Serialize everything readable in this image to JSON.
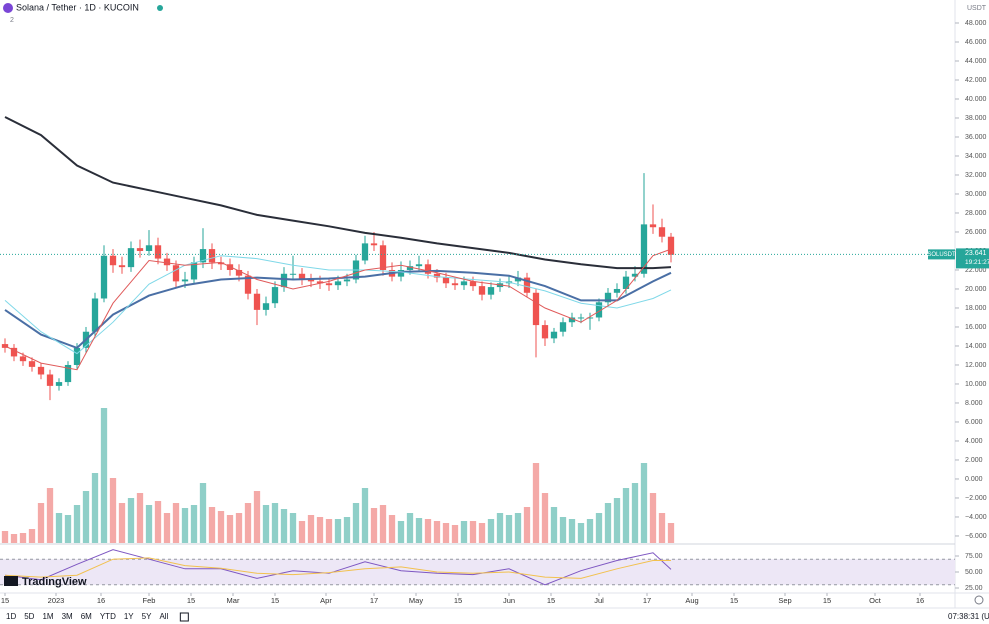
{
  "header": {
    "title": "Solana / Tether · 1D · KUCOIN",
    "indicators": "2",
    "logo": "TradingView"
  },
  "toolbar": {
    "ranges": [
      "1D",
      "5D",
      "1M",
      "3M",
      "6M",
      "YTD",
      "1Y",
      "5Y",
      "All"
    ],
    "clock": "07:38:31 (UTC)"
  },
  "chart_data": [
    {
      "type": "candlestick",
      "currency": "USDT",
      "symbol_tag": "SOLUSDT",
      "last_price": 23.641,
      "countdown": "19:21:27",
      "up_color": "#26a69a",
      "down_color": "#ef5350",
      "volume_up_color": "#8fcfc8",
      "volume_down_color": "#f4a9a7",
      "grid": false,
      "xlim": [
        -1.67,
        316.67
      ],
      "ylim": [
        -6.74,
        50.42
      ],
      "x": [
        0,
        3,
        6,
        9,
        12,
        15,
        18,
        21,
        24,
        27,
        30,
        33,
        36,
        39,
        42,
        45,
        48,
        51,
        54,
        57,
        60,
        63,
        66,
        69,
        72,
        75,
        78,
        81,
        84,
        87,
        90,
        93,
        96,
        99,
        102,
        105,
        108,
        111,
        114,
        117,
        120,
        123,
        126,
        129,
        132,
        135,
        138,
        141,
        144,
        147,
        150,
        153,
        156,
        159,
        162,
        165,
        168,
        171,
        174,
        177,
        180,
        183,
        186,
        189,
        192,
        195,
        198,
        201,
        204,
        207,
        210,
        213,
        216,
        219,
        222
      ],
      "open": [
        14.2,
        13.8,
        12.9,
        12.4,
        11.8,
        11.0,
        9.8,
        10.2,
        12.0,
        13.8,
        15.5,
        19.0,
        23.5,
        22.5,
        22.3,
        24.3,
        24.0,
        24.6,
        23.2,
        22.5,
        20.8,
        21.0,
        22.8,
        24.2,
        22.8,
        22.6,
        22.0,
        21.4,
        19.5,
        17.8,
        18.5,
        20.2,
        21.6,
        21.6,
        21.0,
        20.8,
        20.6,
        20.4,
        20.8,
        21.0,
        23.0,
        24.8,
        24.6,
        22.0,
        21.3,
        22.0,
        22.4,
        22.6,
        21.6,
        21.2,
        20.6,
        20.4,
        20.8,
        20.3,
        19.4,
        20.2,
        20.6,
        20.8,
        21.2,
        19.6,
        16.2,
        14.8,
        15.5,
        16.5,
        17.0,
        17.0,
        17.0,
        18.6,
        19.6,
        20.0,
        21.3,
        21.6,
        26.8,
        26.5,
        25.5
      ],
      "high": [
        14.8,
        14.2,
        13.3,
        12.8,
        12.2,
        11.5,
        10.6,
        12.4,
        14.3,
        16.0,
        19.6,
        24.6,
        24.2,
        23.4,
        25.0,
        25.2,
        26.2,
        25.4,
        23.8,
        23.0,
        21.8,
        23.4,
        26.4,
        24.8,
        23.4,
        23.2,
        22.6,
        21.9,
        20.0,
        19.2,
        20.8,
        22.3,
        23.5,
        22.2,
        21.6,
        21.4,
        21.2,
        21.4,
        21.6,
        23.6,
        25.6,
        26.0,
        25.1,
        22.8,
        22.9,
        23.0,
        23.5,
        23.1,
        22.1,
        21.7,
        21.1,
        21.3,
        21.3,
        20.8,
        20.7,
        21.1,
        21.4,
        21.9,
        21.7,
        20.0,
        16.7,
        15.9,
        17.0,
        17.5,
        17.4,
        17.5,
        19.0,
        20.1,
        20.6,
        21.9,
        22.4,
        32.2,
        28.9,
        27.4,
        25.9
      ],
      "low": [
        13.3,
        12.4,
        11.9,
        11.3,
        10.5,
        8.3,
        9.3,
        9.8,
        11.6,
        13.3,
        15.0,
        18.6,
        21.7,
        21.6,
        21.8,
        23.3,
        23.5,
        22.6,
        21.9,
        20.2,
        20.1,
        20.5,
        22.2,
        22.1,
        22.0,
        21.4,
        20.8,
        18.9,
        16.2,
        17.2,
        18.0,
        19.7,
        21.0,
        20.4,
        20.2,
        20.0,
        19.8,
        19.9,
        20.3,
        20.6,
        22.6,
        24.0,
        21.4,
        20.8,
        20.8,
        21.5,
        21.9,
        21.1,
        20.7,
        20.1,
        19.9,
        19.9,
        19.8,
        18.8,
        18.9,
        19.7,
        20.1,
        20.3,
        19.1,
        12.8,
        14.0,
        14.3,
        15.0,
        16.0,
        16.4,
        15.7,
        16.6,
        18.1,
        19.1,
        19.5,
        20.8,
        21.2,
        25.8,
        24.9,
        22.8
      ],
      "close": [
        13.8,
        12.9,
        12.4,
        11.8,
        11.0,
        9.8,
        10.2,
        12.0,
        13.8,
        15.5,
        19.0,
        23.5,
        22.5,
        22.3,
        24.3,
        24.0,
        24.6,
        23.2,
        22.5,
        20.8,
        21.0,
        22.8,
        24.2,
        22.8,
        22.6,
        22.0,
        21.4,
        19.5,
        17.8,
        18.5,
        20.2,
        21.6,
        21.6,
        21.0,
        20.8,
        20.6,
        20.4,
        20.8,
        21.0,
        23.0,
        24.8,
        24.6,
        22.0,
        21.3,
        22.0,
        22.4,
        22.6,
        21.6,
        21.2,
        20.6,
        20.4,
        20.8,
        20.3,
        19.4,
        20.2,
        20.6,
        20.8,
        21.2,
        19.6,
        16.2,
        14.8,
        15.5,
        16.5,
        17.0,
        17.0,
        17.0,
        18.6,
        19.6,
        20.0,
        21.3,
        21.6,
        26.8,
        26.5,
        25.5,
        23.6
      ],
      "volume": [
        12,
        9,
        10,
        14,
        40,
        55,
        30,
        28,
        38,
        52,
        70,
        135,
        65,
        40,
        45,
        50,
        38,
        42,
        30,
        40,
        35,
        38,
        60,
        36,
        32,
        28,
        30,
        40,
        52,
        38,
        40,
        34,
        30,
        22,
        28,
        26,
        24,
        24,
        26,
        40,
        55,
        35,
        38,
        28,
        22,
        30,
        25,
        24,
        22,
        20,
        18,
        22,
        22,
        20,
        24,
        30,
        28,
        30,
        36,
        80,
        50,
        36,
        26,
        24,
        20,
        24,
        30,
        40,
        45,
        55,
        60,
        80,
        50,
        30,
        20
      ],
      "series": [
        {
          "color": "#2a2e39",
          "width": 2,
          "x": [
            0,
            12,
            24,
            36,
            48,
            60,
            72,
            84,
            96,
            108,
            120,
            132,
            144,
            156,
            168,
            180,
            192,
            204,
            216,
            222
          ],
          "values": [
            38.1,
            36.2,
            33.0,
            31.2,
            30.4,
            29.6,
            28.8,
            27.8,
            27.2,
            26.6,
            25.9,
            25.4,
            24.8,
            24.3,
            23.8,
            23.1,
            22.6,
            22.2,
            22.2,
            22.3
          ]
        },
        {
          "color": "#4a6fa5",
          "width": 2,
          "x": [
            0,
            12,
            24,
            36,
            48,
            60,
            72,
            84,
            96,
            108,
            120,
            132,
            144,
            156,
            168,
            180,
            192,
            204,
            216,
            222
          ],
          "values": [
            17.8,
            15.2,
            13.8,
            17.3,
            19.3,
            20.4,
            21.0,
            21.2,
            21.0,
            21.1,
            21.3,
            21.8,
            21.9,
            21.7,
            21.4,
            20.3,
            18.8,
            18.8,
            20.8,
            21.7
          ]
        },
        {
          "color": "#7fd8e8",
          "width": 1,
          "x": [
            0,
            12,
            24,
            36,
            48,
            60,
            72,
            84,
            96,
            108,
            120,
            132,
            144,
            156,
            168,
            180,
            192,
            204,
            216,
            222
          ],
          "values": [
            18.8,
            15.5,
            13.2,
            16.5,
            20.5,
            22.5,
            23.5,
            23.2,
            22.5,
            22.0,
            22.0,
            21.8,
            21.3,
            21.0,
            20.7,
            19.8,
            18.5,
            18.0,
            19.0,
            19.9
          ]
        },
        {
          "color": "#e05a5a",
          "width": 1,
          "x": [
            0,
            12,
            24,
            36,
            48,
            60,
            72,
            84,
            96,
            108,
            120,
            132,
            144,
            156,
            168,
            180,
            192,
            204,
            216,
            222
          ],
          "values": [
            14.0,
            12.2,
            11.5,
            18.5,
            23.0,
            22.5,
            22.8,
            21.0,
            20.0,
            20.8,
            22.0,
            22.5,
            21.7,
            20.8,
            20.3,
            18.0,
            16.5,
            18.8,
            23.5,
            24.2
          ]
        }
      ],
      "xticks": [
        {
          "value": 0,
          "label": "15"
        },
        {
          "value": 17,
          "label": "2023"
        },
        {
          "value": 32,
          "label": "16"
        },
        {
          "value": 48,
          "label": "Feb"
        },
        {
          "value": 62,
          "label": "15"
        },
        {
          "value": 76,
          "label": "Mar"
        },
        {
          "value": 90,
          "label": "15"
        },
        {
          "value": 107,
          "label": "Apr"
        },
        {
          "value": 123,
          "label": "17"
        },
        {
          "value": 137,
          "label": "May"
        },
        {
          "value": 151,
          "label": "15"
        },
        {
          "value": 168,
          "label": "Jun"
        },
        {
          "value": 182,
          "label": "15"
        },
        {
          "value": 198,
          "label": "Jul"
        },
        {
          "value": 214,
          "label": "17"
        },
        {
          "value": 229,
          "label": "Aug"
        },
        {
          "value": 243,
          "label": "15"
        },
        {
          "value": 260,
          "label": "Sep"
        },
        {
          "value": 274,
          "label": "15"
        },
        {
          "value": 290,
          "label": "Oct"
        },
        {
          "value": 305,
          "label": "16"
        }
      ],
      "yticks": [
        {
          "value": -6,
          "label": "−6.000"
        },
        {
          "value": -4,
          "label": "−4.000"
        },
        {
          "value": -2,
          "label": "−2.000"
        },
        {
          "value": 0,
          "label": "0.000"
        },
        {
          "value": 2,
          "label": "2.000"
        },
        {
          "value": 4,
          "label": "4.000"
        },
        {
          "value": 6,
          "label": "6.000"
        },
        {
          "value": 8,
          "label": "8.000"
        },
        {
          "value": 10,
          "label": "10.000"
        },
        {
          "value": 12,
          "label": "12.000"
        },
        {
          "value": 14,
          "label": "14.000"
        },
        {
          "value": 16,
          "label": "16.000"
        },
        {
          "value": 18,
          "label": "18.000"
        },
        {
          "value": 20,
          "label": "20.000"
        },
        {
          "value": 22,
          "label": "22.000"
        },
        {
          "value": 24,
          "label": "24.000"
        },
        {
          "value": 26,
          "label": "26.000"
        },
        {
          "value": 28,
          "label": "28.000"
        },
        {
          "value": 30,
          "label": "30.000"
        },
        {
          "value": 32,
          "label": "32.000"
        },
        {
          "value": 34,
          "label": "34.000"
        },
        {
          "value": 36,
          "label": "36.000"
        },
        {
          "value": 38,
          "label": "38.000"
        },
        {
          "value": 40,
          "label": "40.000"
        },
        {
          "value": 42,
          "label": "42.000"
        },
        {
          "value": 44,
          "label": "44.000"
        },
        {
          "value": 46,
          "label": "46.000"
        },
        {
          "value": 48,
          "label": "48.000"
        }
      ]
    },
    {
      "type": "line",
      "xlim": [
        -1.67,
        316.67
      ],
      "ylim": [
        18.75,
        92.2
      ],
      "band": [
        30,
        70
      ],
      "band_color": "#ede7f6",
      "series": [
        {
          "color": "#7e57c2",
          "width": 1,
          "x": [
            0,
            12,
            24,
            36,
            48,
            60,
            72,
            84,
            96,
            108,
            120,
            132,
            144,
            156,
            168,
            180,
            192,
            204,
            216,
            222
          ],
          "values": [
            45,
            38,
            62,
            85,
            70,
            55,
            55,
            40,
            52,
            48,
            66,
            52,
            48,
            46,
            55,
            30,
            52,
            68,
            80,
            54
          ]
        },
        {
          "color": "#f2c14e",
          "width": 1,
          "x": [
            0,
            12,
            24,
            36,
            48,
            60,
            72,
            84,
            96,
            108,
            120,
            132,
            144,
            156,
            168,
            180,
            192,
            204,
            216,
            222
          ],
          "values": [
            45,
            42,
            45,
            70,
            72,
            60,
            56,
            48,
            46,
            49,
            55,
            58,
            50,
            48,
            50,
            42,
            40,
            55,
            68,
            68
          ]
        }
      ],
      "yticks": [
        {
          "value": 75,
          "label": "75.00"
        },
        {
          "value": 50,
          "label": "50.00"
        },
        {
          "value": 25,
          "label": "25.00"
        }
      ]
    }
  ]
}
